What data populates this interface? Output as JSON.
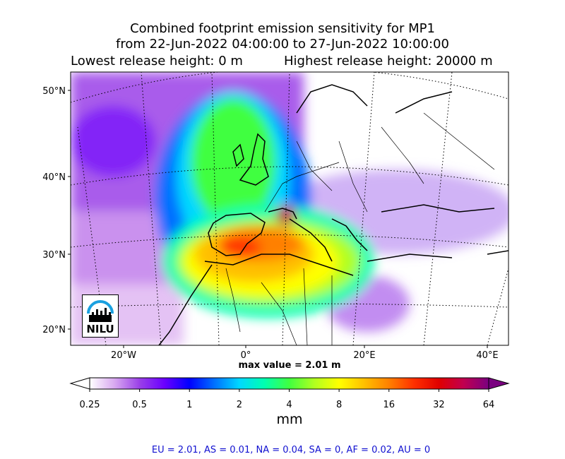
{
  "title": {
    "line1": "Combined footprint emission sensitivity for MP1",
    "line2": "from 22-Jun-2022 04:00:00 to 27-Jun-2022 10:00:00",
    "line3_left": "Lowest release height: 0 m",
    "line3_right": "Highest release height: 20000 m"
  },
  "map": {
    "lat_ticks": [
      "50°N",
      "40°N",
      "30°N",
      "20°N"
    ],
    "lon_ticks": [
      "20°W",
      "0°",
      "20°E",
      "40°E"
    ],
    "max_value_label": "max value = 2.01 m",
    "logo_text": "NILU"
  },
  "colorbar": {
    "ticks": [
      "0.25",
      "0.5",
      "1",
      "2",
      "4",
      "8",
      "16",
      "32",
      "64"
    ],
    "unit_label": "mm",
    "colors": [
      "#ffffff",
      "#d8a8f0",
      "#9a40e8",
      "#6a00ff",
      "#0000ff",
      "#0070ff",
      "#00d8ff",
      "#00ffb0",
      "#40ff40",
      "#b0ff20",
      "#ffff00",
      "#ffc000",
      "#ff8000",
      "#ff3000",
      "#e00000",
      "#c00050",
      "#7a0080"
    ]
  },
  "stats_line": "EU = 2.01,  AS = 0.01,  NA = 0.04,  SA = 0,  AF = 0.02,  AU = 0"
}
